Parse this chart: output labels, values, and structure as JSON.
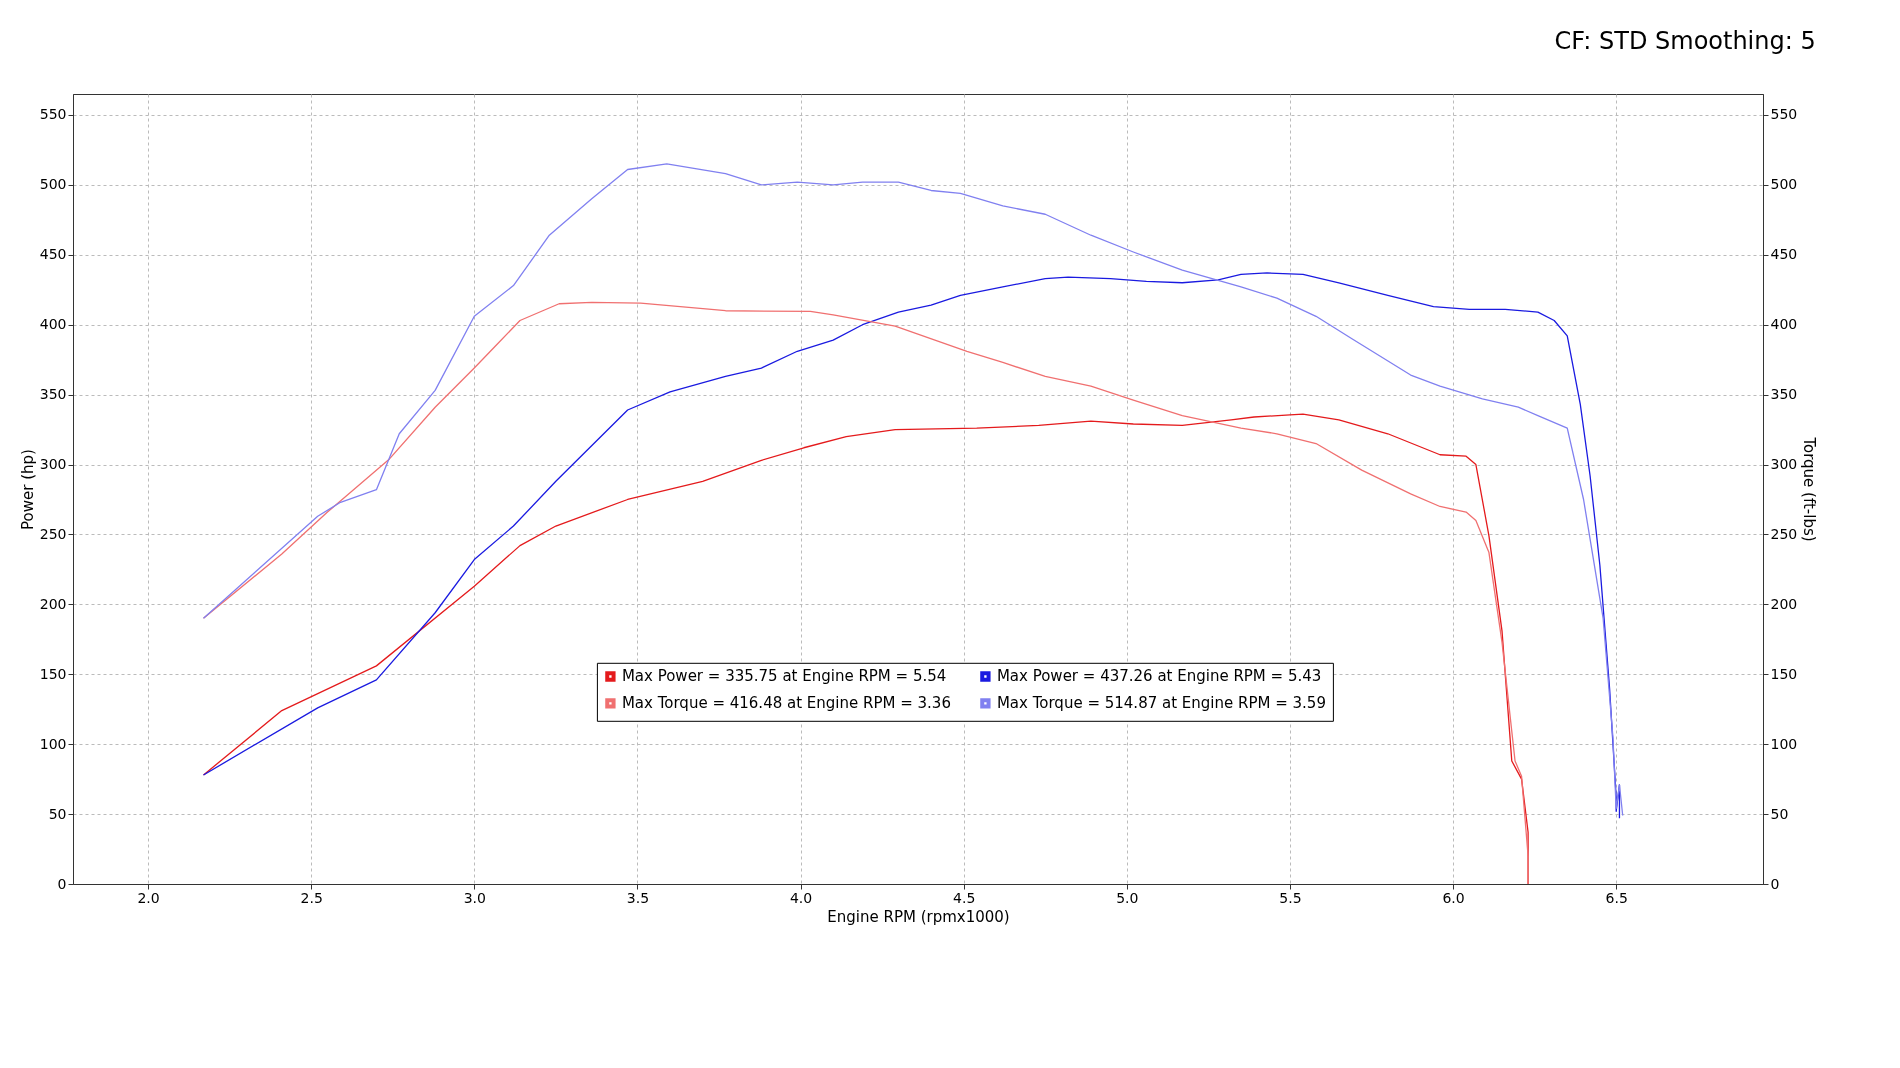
{
  "chart_data": {
    "type": "line",
    "subtitle": "CF: STD Smoothing: 5",
    "xlabel": "Engine RPM (rpmx1000)",
    "ylabel": "Power (hp)",
    "y2label": "Torque (ft-lbs)",
    "xlim": [
      1.77,
      6.95
    ],
    "xticks": [
      {
        "value": 2,
        "label": "2.0"
      },
      {
        "value": 2.5,
        "label": "2.5"
      },
      {
        "value": 3,
        "label": "3.0"
      },
      {
        "value": 3.5,
        "label": "3.5"
      },
      {
        "value": 4,
        "label": "4.0"
      },
      {
        "value": 4.5,
        "label": "4.5"
      },
      {
        "value": 5,
        "label": "5.0"
      },
      {
        "value": 5.5,
        "label": "5.5"
      },
      {
        "value": 6,
        "label": "6.0"
      },
      {
        "value": 6.5,
        "label": "6.5"
      }
    ],
    "ylim": [
      0,
      565
    ],
    "yticks": [
      0,
      50,
      100,
      150,
      200,
      250,
      300,
      350,
      400,
      450,
      500,
      550
    ],
    "y2lim": [
      0,
      565
    ],
    "y2ticks": [
      0,
      50,
      100,
      150,
      200,
      250,
      300,
      350,
      400,
      450,
      500,
      550
    ],
    "grid": true,
    "legend": "bottom",
    "line_style": "solid",
    "marker": "none",
    "series": [
      {
        "name": "Max Power = 335.75 at Engine RPM = 5.54",
        "color": "#e41a1c",
        "x": [
          2.17,
          2.41,
          2.7,
          3.0,
          3.14,
          3.25,
          3.47,
          3.7,
          3.88,
          4.01,
          4.14,
          4.29,
          4.54,
          4.73,
          4.89,
          5.02,
          5.17,
          5.32,
          5.39,
          5.5,
          5.54,
          5.65,
          5.8,
          5.96,
          6.04,
          6.07,
          6.11,
          6.15,
          6.18,
          6.21,
          6.23,
          6.23
        ],
        "values": [
          78,
          124,
          156,
          213,
          242,
          256,
          275,
          288,
          303,
          312,
          320,
          325,
          326,
          328,
          331,
          329,
          328,
          332,
          334,
          335.5,
          336,
          332,
          322,
          307,
          306,
          300,
          249,
          181,
          88,
          75,
          37,
          0
        ]
      },
      {
        "name": "Max Torque = 416.48 at Engine RPM = 3.36",
        "color": "#f07070",
        "axis": "y2",
        "x": [
          2.17,
          2.41,
          2.55,
          2.74,
          2.88,
          3.0,
          3.07,
          3.14,
          3.26,
          3.36,
          3.51,
          3.77,
          4.03,
          4.1,
          4.29,
          4.51,
          4.62,
          4.75,
          4.89,
          5.02,
          5.17,
          5.35,
          5.46,
          5.58,
          5.72,
          5.87,
          5.96,
          6.04,
          6.07,
          6.11,
          6.15,
          6.19,
          6.21,
          6.23,
          6.23
        ],
        "values": [
          190,
          236,
          266,
          304,
          341,
          369,
          386,
          403,
          415,
          416,
          415.5,
          410,
          409.5,
          407,
          399,
          381,
          373,
          363,
          356,
          346,
          335,
          326,
          322,
          315,
          296,
          279,
          270,
          266,
          260,
          237,
          173,
          88,
          77,
          20,
          0
        ]
      },
      {
        "name": "Max Power = 437.26 at Engine RPM = 5.43",
        "color": "#1a1ae0",
        "x": [
          2.17,
          2.52,
          2.7,
          2.88,
          3.0,
          3.12,
          3.25,
          3.47,
          3.6,
          3.77,
          3.88,
          3.99,
          4.1,
          4.19,
          4.3,
          4.4,
          4.49,
          4.62,
          4.75,
          4.82,
          4.95,
          5.06,
          5.17,
          5.28,
          5.35,
          5.43,
          5.54,
          5.65,
          5.8,
          5.94,
          6.05,
          6.16,
          6.26,
          6.31,
          6.35,
          6.39,
          6.42,
          6.45,
          6.48,
          6.5,
          6.5,
          6.51,
          6.51
        ],
        "values": [
          78,
          126,
          146,
          194,
          232,
          256,
          288,
          339,
          352,
          363,
          369,
          381,
          389,
          400,
          409,
          414,
          421,
          427,
          433,
          434,
          433,
          431,
          430,
          432,
          436,
          437,
          436,
          430,
          421,
          413,
          411,
          411,
          409,
          403,
          392,
          343,
          292,
          228,
          139,
          62,
          52,
          71,
          47
        ]
      },
      {
        "name": "Max Torque = 514.87 at Engine RPM = 3.59",
        "color": "#8080f0",
        "axis": "y2",
        "x": [
          2.17,
          2.52,
          2.59,
          2.7,
          2.77,
          2.88,
          3.0,
          3.12,
          3.23,
          3.36,
          3.47,
          3.59,
          3.77,
          3.88,
          3.99,
          4.1,
          4.19,
          4.3,
          4.4,
          4.49,
          4.62,
          4.75,
          4.89,
          5.02,
          5.17,
          5.35,
          5.46,
          5.58,
          5.69,
          5.87,
          5.96,
          6.09,
          6.2,
          6.26,
          6.35,
          6.4,
          6.46,
          6.49,
          6.5,
          6.51,
          6.52
        ],
        "values": [
          190,
          263,
          273,
          282,
          322,
          353,
          406,
          428,
          464,
          490,
          511,
          515,
          508,
          500,
          502,
          500,
          502,
          502,
          496,
          494,
          485,
          479,
          464,
          452,
          439,
          427,
          419,
          406,
          390,
          364,
          356,
          347,
          341,
          335,
          326,
          275,
          190,
          105,
          54,
          71,
          49
        ]
      }
    ]
  }
}
